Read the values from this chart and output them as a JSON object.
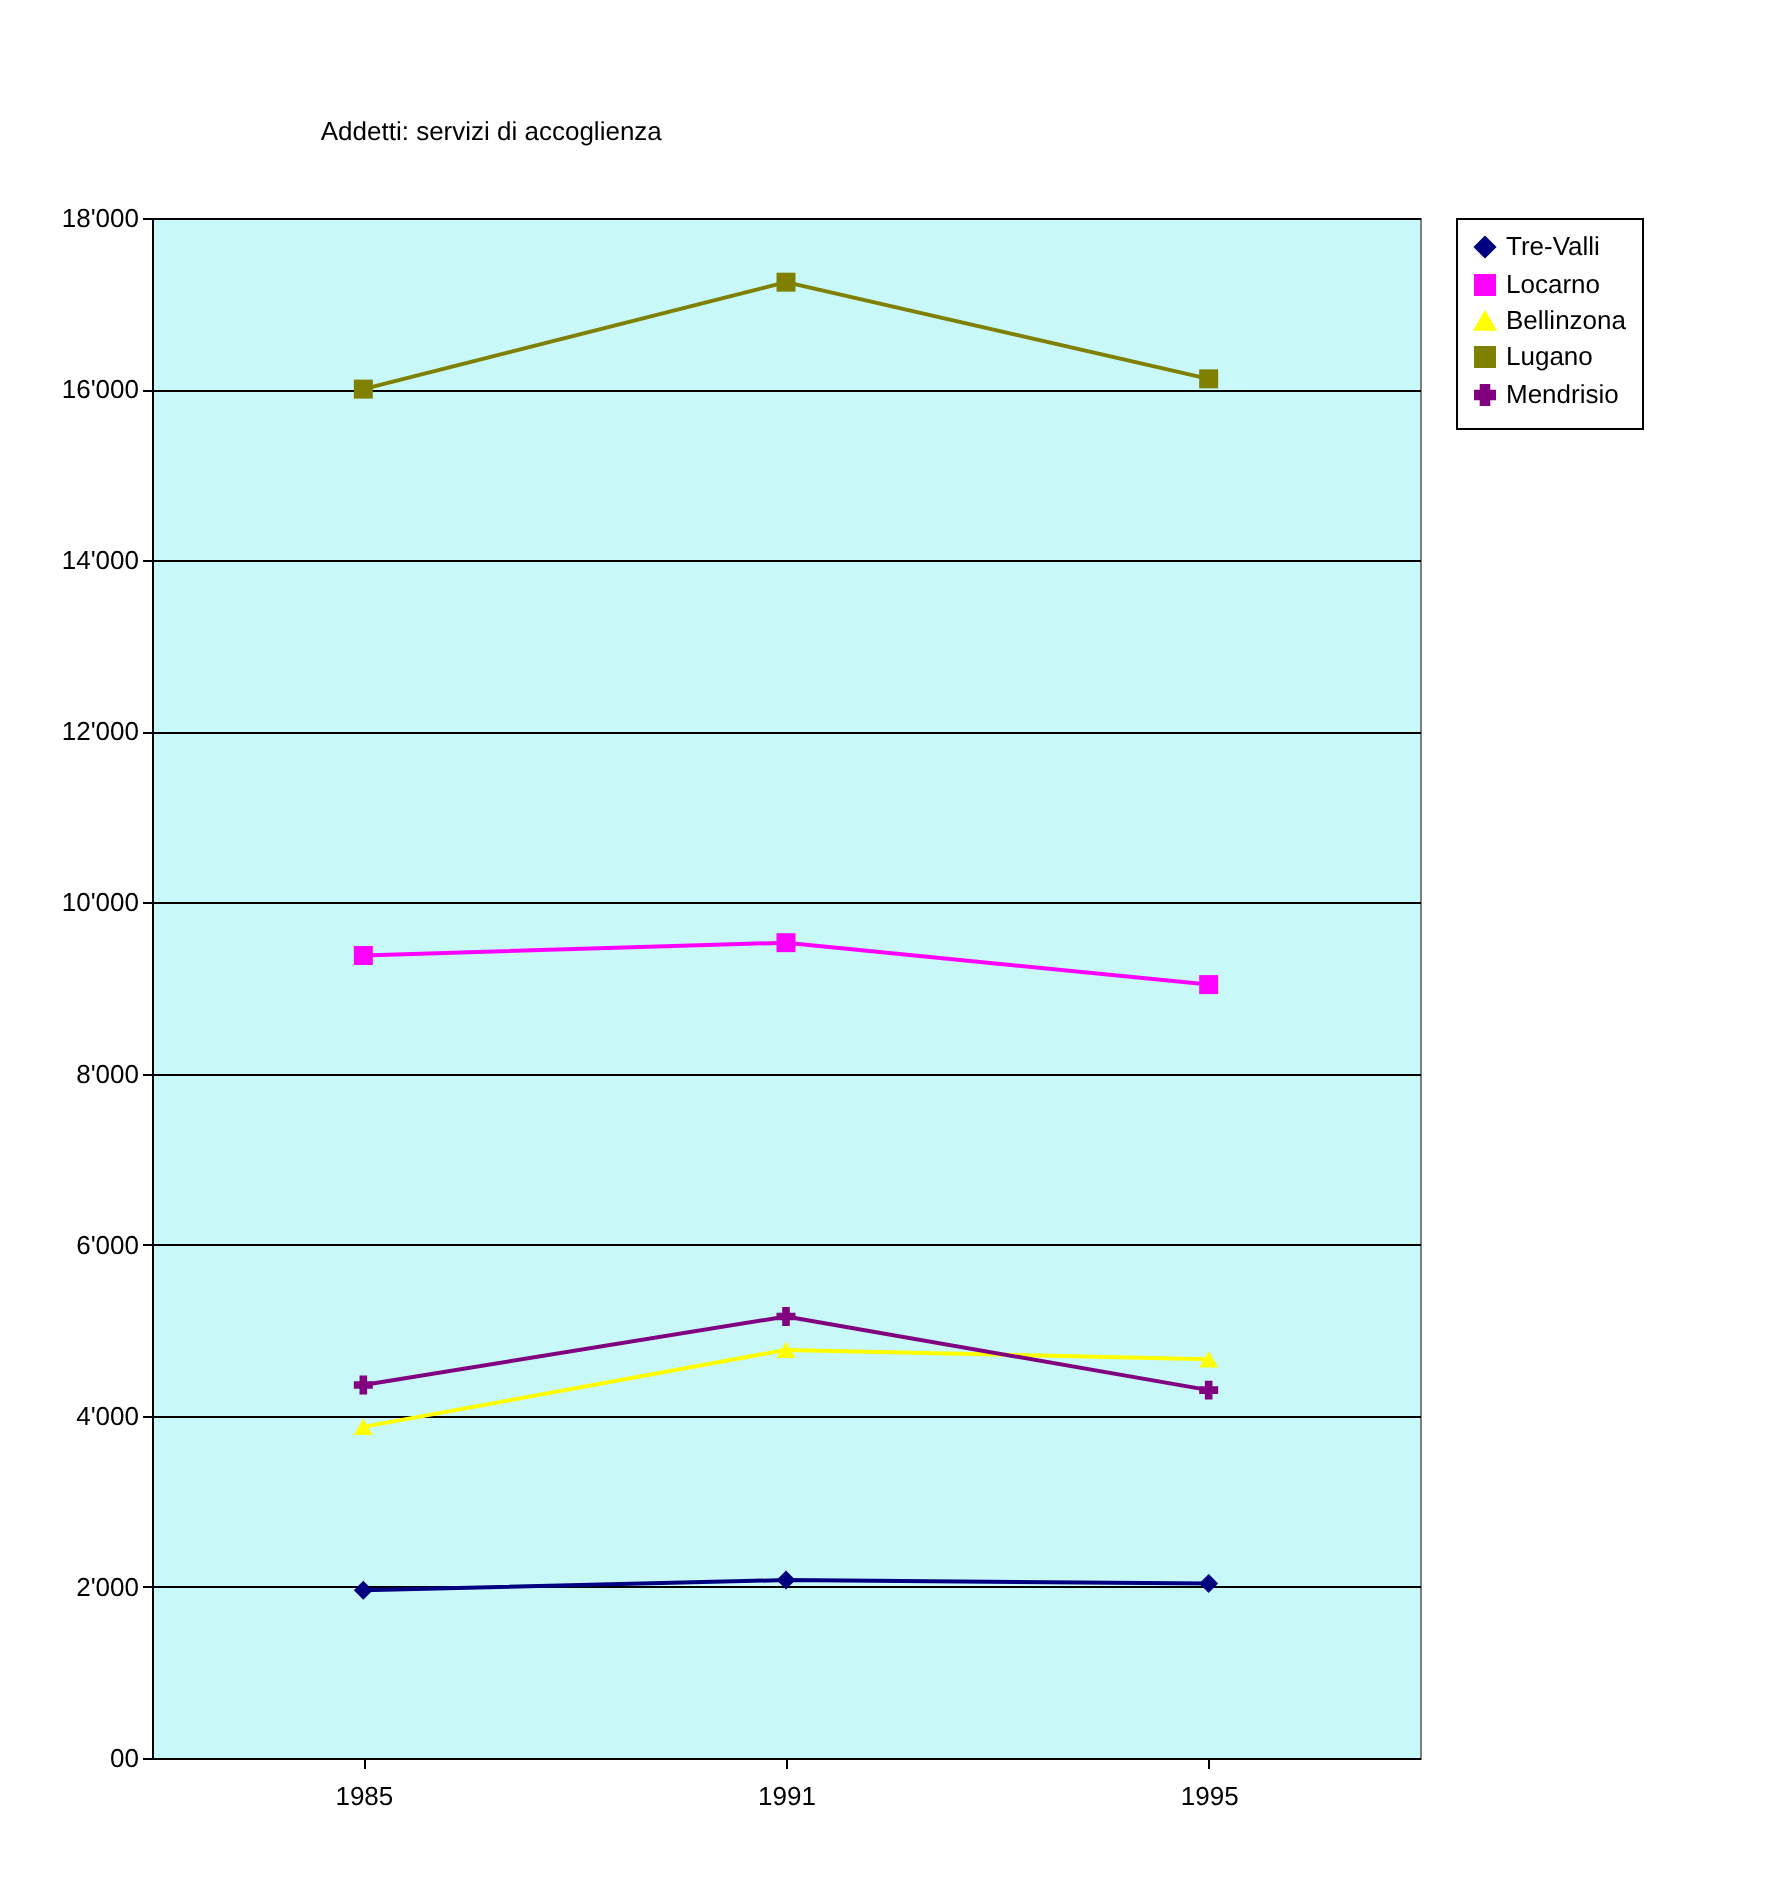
{
  "chart_data": {
    "type": "line",
    "title": "Addetti: servizi di accoglienza",
    "categories": [
      "1985",
      "1991",
      "1995"
    ],
    "series": [
      {
        "name": "Tre-Valli",
        "color": "#000080",
        "marker": "diamond",
        "values": [
          1960,
          2080,
          2040
        ]
      },
      {
        "name": "Locarno",
        "color": "#ff00ff",
        "marker": "square",
        "values": [
          9380,
          9530,
          9040
        ]
      },
      {
        "name": "Bellinzona",
        "color": "#ffff00",
        "marker": "triangle",
        "values": [
          3870,
          4770,
          4660
        ]
      },
      {
        "name": "Lugano",
        "color": "#808000",
        "marker": "square",
        "values": [
          16000,
          17250,
          16120
        ]
      },
      {
        "name": "Mendrisio",
        "color": "#800080",
        "marker": "cross",
        "values": [
          4360,
          5160,
          4300
        ]
      }
    ],
    "ylim": [
      0,
      18000
    ],
    "yticks": [
      {
        "value": 0,
        "label": "00"
      },
      {
        "value": 2000,
        "label": "2'000"
      },
      {
        "value": 4000,
        "label": "4'000"
      },
      {
        "value": 6000,
        "label": "6'000"
      },
      {
        "value": 8000,
        "label": "8'000"
      },
      {
        "value": 10000,
        "label": "10'000"
      },
      {
        "value": 12000,
        "label": "12'000"
      },
      {
        "value": 14000,
        "label": "14'000"
      },
      {
        "value": 16000,
        "label": "16'000"
      },
      {
        "value": 18000,
        "label": "18'000"
      }
    ],
    "grid": "y",
    "legend": "right",
    "line_style": "solid"
  }
}
